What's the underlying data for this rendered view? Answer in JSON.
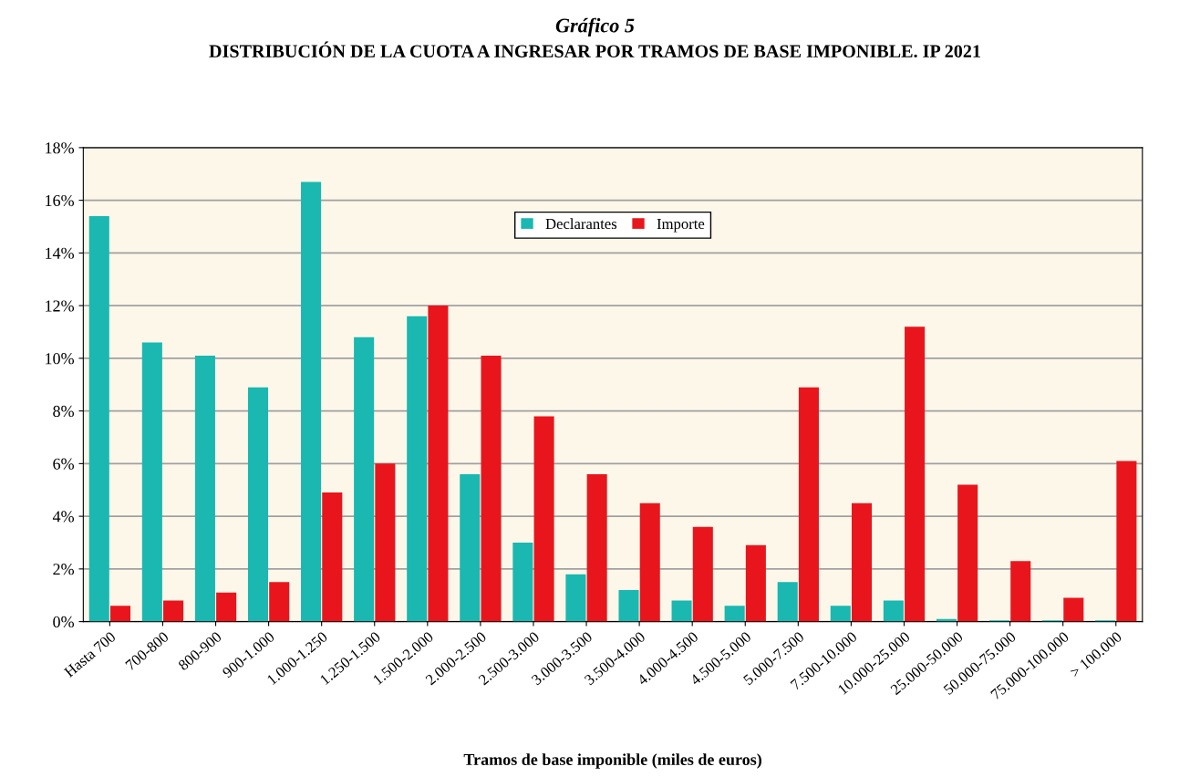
{
  "chart_data": {
    "type": "bar",
    "title": "Gráfico 5",
    "subtitle": "DISTRIBUCIÓN DE LA CUOTA A INGRESAR POR TRAMOS DE BASE IMPONIBLE. IP 2021",
    "xlabel": "Tramos de base imponible (miles de euros)",
    "categories": [
      "Hasta 700",
      "700-800",
      "800-900",
      "900-1.000",
      "1.000-1.250",
      "1.250-1.500",
      "1.500-2.000",
      "2.000-2.500",
      "2.500-3.000",
      "3.000-3.500",
      "3.500-4.000",
      "4.000-4.500",
      "4.500-5.000",
      "5.000-7.500",
      "7.500-10.000",
      "10.000-25.000",
      "25.000-50.000",
      "50.000-75.000",
      "75.000-100.000",
      "> 100.000"
    ],
    "series": [
      {
        "name": "Declarantes",
        "color": "#1ab8b0",
        "values": [
          15.4,
          10.6,
          10.1,
          8.9,
          16.7,
          10.8,
          11.6,
          5.6,
          3.0,
          1.8,
          1.2,
          0.8,
          0.6,
          1.5,
          0.6,
          0.8,
          0.1,
          0.05,
          0.05,
          0.05
        ]
      },
      {
        "name": "Importe",
        "color": "#e8161c",
        "values": [
          0.6,
          0.8,
          1.1,
          1.5,
          4.9,
          6.0,
          12.0,
          10.1,
          7.8,
          5.6,
          4.5,
          3.6,
          2.9,
          8.9,
          4.5,
          11.2,
          5.2,
          2.3,
          0.9,
          6.1
        ]
      }
    ],
    "ylim": [
      0,
      18
    ],
    "yticks": [
      {
        "value": 0,
        "label": "0%"
      },
      {
        "value": 2,
        "label": "2%"
      },
      {
        "value": 4,
        "label": "4%"
      },
      {
        "value": 6,
        "label": "6%"
      },
      {
        "value": 8,
        "label": "8%"
      },
      {
        "value": 10,
        "label": "10%"
      },
      {
        "value": 12,
        "label": "12%"
      },
      {
        "value": 14,
        "label": "14%"
      },
      {
        "value": 16,
        "label": "16%"
      },
      {
        "value": 18,
        "label": "18%"
      }
    ],
    "grid": "y",
    "legend": "top"
  }
}
